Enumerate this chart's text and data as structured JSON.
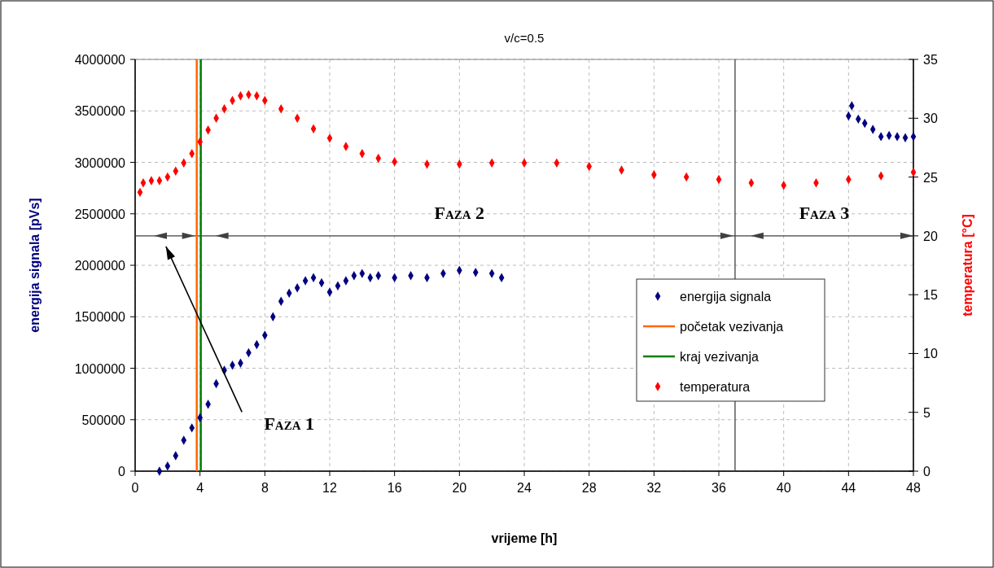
{
  "chart_data": {
    "type": "scatter",
    "title": "v/c=0.5",
    "xlabel": "vrijeme [h]",
    "ylabel": "energija signala [pVs]",
    "y2label": "temperatura [°C]",
    "xlim": [
      0,
      48
    ],
    "xticks": [
      0,
      4,
      8,
      12,
      16,
      20,
      24,
      28,
      32,
      36,
      40,
      44,
      48
    ],
    "ylim": [
      0,
      4000000
    ],
    "yticks": [
      0,
      500000,
      1000000,
      1500000,
      2000000,
      2500000,
      3000000,
      3500000,
      4000000
    ],
    "y2lim": [
      0,
      35
    ],
    "y2ticks": [
      0,
      5,
      10,
      15,
      20,
      25,
      30,
      35
    ],
    "grid": true,
    "legend": "right",
    "series": [
      {
        "name": "energija signala",
        "marker": "diamond",
        "color": "#000080",
        "x": [
          1.5,
          2,
          2.5,
          3,
          3.5,
          4,
          4.5,
          5,
          5.5,
          6,
          6.5,
          7,
          7.5,
          8,
          8.5,
          9,
          9.5,
          10,
          10.5,
          11,
          11.5,
          12,
          12.5,
          13,
          13.5,
          14,
          14.5,
          15,
          16,
          17,
          18,
          19,
          20,
          21,
          22,
          22.6,
          44,
          44.2,
          44.6,
          45,
          45.5,
          46,
          46.5,
          47,
          47.5,
          48
        ],
        "values": [
          0,
          50000,
          150000,
          300000,
          420000,
          520000,
          650000,
          850000,
          980000,
          1030000,
          1050000,
          1150000,
          1230000,
          1320000,
          1500000,
          1650000,
          1730000,
          1780000,
          1850000,
          1880000,
          1830000,
          1740000,
          1800000,
          1850000,
          1900000,
          1920000,
          1880000,
          1900000,
          1880000,
          1900000,
          1880000,
          1920000,
          1950000,
          1930000,
          1920000,
          1880000,
          3450000,
          3550000,
          3420000,
          3380000,
          3320000,
          3250000,
          3260000,
          3250000,
          3240000,
          3250000
        ]
      },
      {
        "name": "početak vezivanja",
        "type": "line",
        "marker": "none",
        "color": "#ff6600",
        "x": [
          3.8,
          3.8
        ],
        "values": [
          0,
          4000000
        ]
      },
      {
        "name": "kraj vezivanja",
        "type": "line",
        "marker": "none",
        "color": "#008000",
        "x": [
          4.05,
          4.05
        ],
        "values": [
          0,
          4000000
        ]
      },
      {
        "name": "temperatura",
        "marker": "diamond",
        "axis": "y2",
        "color": "#ff0000",
        "x": [
          0.3,
          0.5,
          1,
          1.5,
          2,
          2.5,
          3,
          3.5,
          4,
          4.5,
          5,
          5.5,
          6,
          6.5,
          7,
          7.5,
          8,
          9,
          10,
          11,
          12,
          13,
          14,
          15,
          16,
          18,
          20,
          22,
          24,
          26,
          28,
          30,
          32,
          34,
          36,
          38,
          40,
          42,
          44,
          46,
          48
        ],
        "values": [
          23.7,
          24.5,
          24.7,
          24.7,
          25,
          25.5,
          26.2,
          27,
          28,
          29,
          30,
          30.8,
          31.5,
          31.9,
          32,
          31.9,
          31.5,
          30.8,
          30,
          29.1,
          28.3,
          27.6,
          27,
          26.6,
          26.3,
          26.1,
          26.1,
          26.2,
          26.2,
          26.2,
          25.9,
          25.6,
          25.2,
          25,
          24.8,
          24.5,
          24.3,
          24.5,
          24.8,
          25.1,
          25.4
        ]
      }
    ],
    "ref_lines": [
      {
        "axis": "x",
        "value": 37,
        "color": "#404040"
      },
      {
        "axis": "y2",
        "value": 20,
        "color": "#404040"
      }
    ],
    "annotations": [
      "Faza 1",
      "Faza 2",
      "Faza 3"
    ]
  }
}
